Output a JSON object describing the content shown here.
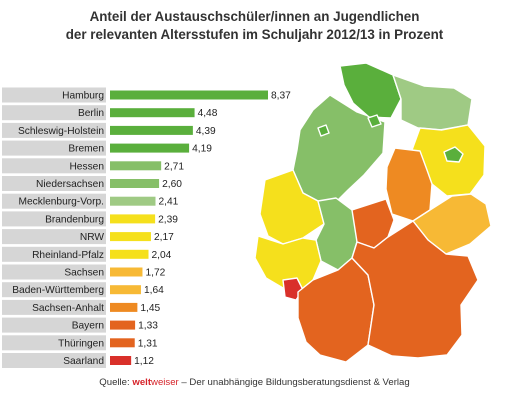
{
  "title": {
    "line1": "Anteil der Austauschschüler/innen an Jugendlichen",
    "line2": "der relevanten Altersstufen im Schuljahr 2012/13 in Prozent"
  },
  "source": {
    "prefix": "Quelle: ",
    "brand_bold": "welt",
    "brand_rest": "weiser",
    "suffix": " – Der unabhängige Bildungsberatungsdienst & Verlag"
  },
  "colors": {
    "dark_green": "#5aaf3c",
    "mid_green": "#86bf68",
    "light_green": "#9fca84",
    "yellow": "#f5e01c",
    "light_orange": "#f7b935",
    "orange": "#ee8a22",
    "dark_orange": "#e3641f",
    "red": "#d9302a",
    "label_bg": "#d6d6d6"
  },
  "chart_data": {
    "type": "bar",
    "orientation": "horizontal",
    "categories": [
      "Hamburg",
      "Berlin",
      "Schleswig-Holstein",
      "Bremen",
      "Hessen",
      "Niedersachsen",
      "Mecklenburg-Vorp.",
      "Brandenburg",
      "NRW",
      "Rheinland-Pfalz",
      "Sachsen",
      "Baden-Württemberg",
      "Sachsen-Anhalt",
      "Bayern",
      "Thüringen",
      "Saarland"
    ],
    "values": [
      8.37,
      4.48,
      4.39,
      4.19,
      2.71,
      2.6,
      2.41,
      2.39,
      2.17,
      2.04,
      1.72,
      1.64,
      1.45,
      1.33,
      1.31,
      1.12
    ],
    "value_labels": [
      "8,37",
      "4,48",
      "4,39",
      "4,19",
      "2,71",
      "2,60",
      "2,41",
      "2,39",
      "2,17",
      "2,04",
      "1,72",
      "1,64",
      "1,45",
      "1,33",
      "1,31",
      "1,12"
    ],
    "bar_colors": [
      "#5aaf3c",
      "#5aaf3c",
      "#5aaf3c",
      "#5aaf3c",
      "#86bf68",
      "#86bf68",
      "#9fca84",
      "#f5e01c",
      "#f5e01c",
      "#f5e01c",
      "#f7b935",
      "#f7b935",
      "#ee8a22",
      "#e3641f",
      "#e3641f",
      "#d9302a"
    ],
    "xlim": [
      0,
      8.37
    ],
    "title": "Anteil der Austauschschüler/innen an Jugendlichen der relevanten Altersstufen im Schuljahr 2012/13 in Prozent",
    "xlabel": "",
    "ylabel": "",
    "grid": false
  }
}
